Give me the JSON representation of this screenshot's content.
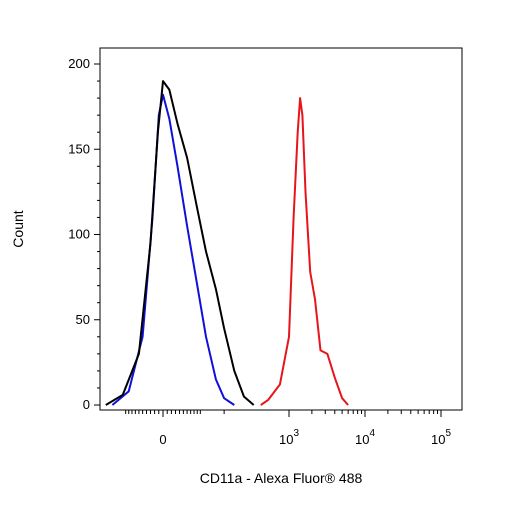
{
  "chart_data": {
    "type": "line",
    "xlabel": "CD11a - Alexa Fluor® 488",
    "ylabel": "Count",
    "x_scale": "biexponential",
    "ylim": [
      0,
      210
    ],
    "y_ticks": [
      0,
      50,
      100,
      150,
      200
    ],
    "x_ticks": [
      {
        "base": "0",
        "exp": ""
      },
      {
        "base": "10",
        "exp": "3"
      },
      {
        "base": "10",
        "exp": "4"
      },
      {
        "base": "10",
        "exp": "5"
      }
    ],
    "grid": false,
    "legend": "none",
    "series": [
      {
        "color": "#1010d8",
        "points": [
          [
            -150,
            0
          ],
          [
            -90,
            8
          ],
          [
            -50,
            40
          ],
          [
            -25,
            110
          ],
          [
            -10,
            170
          ],
          [
            0,
            182
          ],
          [
            15,
            168
          ],
          [
            35,
            140
          ],
          [
            60,
            105
          ],
          [
            90,
            70
          ],
          [
            120,
            40
          ],
          [
            160,
            15
          ],
          [
            200,
            4
          ],
          [
            260,
            0
          ]
        ]
      },
      {
        "color": "#000000",
        "points": [
          [
            -180,
            0
          ],
          [
            -110,
            6
          ],
          [
            -60,
            30
          ],
          [
            -30,
            95
          ],
          [
            -12,
            160
          ],
          [
            0,
            190
          ],
          [
            15,
            185
          ],
          [
            35,
            165
          ],
          [
            60,
            145
          ],
          [
            90,
            115
          ],
          [
            120,
            90
          ],
          [
            160,
            68
          ],
          [
            200,
            45
          ],
          [
            260,
            20
          ],
          [
            330,
            5
          ],
          [
            420,
            0
          ]
        ]
      },
      {
        "color": "#e8141c",
        "points": [
          [
            500,
            0
          ],
          [
            600,
            3
          ],
          [
            800,
            12
          ],
          [
            1000,
            40
          ],
          [
            1150,
            110
          ],
          [
            1300,
            160
          ],
          [
            1400,
            180
          ],
          [
            1500,
            170
          ],
          [
            1650,
            125
          ],
          [
            1900,
            78
          ],
          [
            2200,
            62
          ],
          [
            2600,
            32
          ],
          [
            3200,
            30
          ],
          [
            4000,
            16
          ],
          [
            5000,
            4
          ],
          [
            6000,
            0
          ]
        ]
      }
    ]
  }
}
